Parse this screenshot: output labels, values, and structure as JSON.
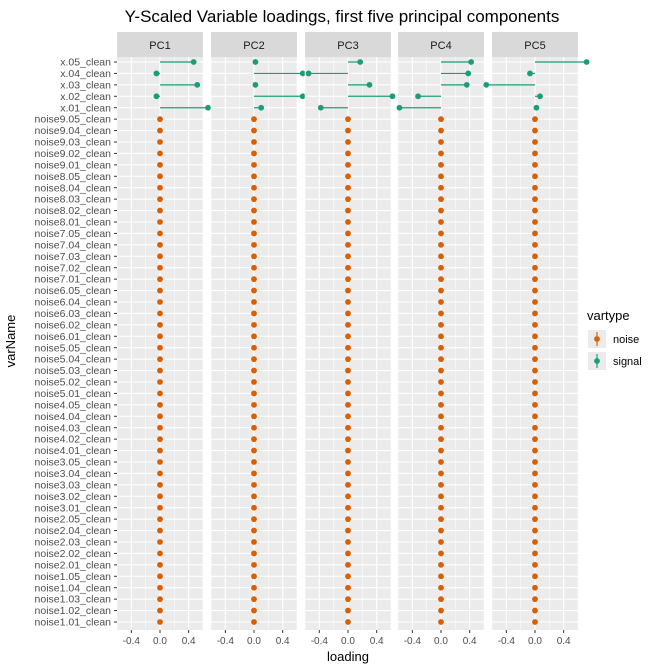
{
  "chart_data": {
    "type": "scatter",
    "title": "Y-Scaled Variable loadings, first five principal components",
    "xlabel": "loading",
    "ylabel": "varName",
    "panels": [
      "PC1",
      "PC2",
      "PC3",
      "PC4",
      "PC5"
    ],
    "xlim": [
      -0.6,
      0.6
    ],
    "xticks": [
      -0.4,
      0.0,
      0.4
    ],
    "xtick_labels": [
      "-0.4",
      "0.0",
      "0.4"
    ],
    "variables": [
      "x.05_clean",
      "x.04_clean",
      "x.03_clean",
      "x.02_clean",
      "x.01_clean",
      "noise9.05_clean",
      "noise9.04_clean",
      "noise9.03_clean",
      "noise9.02_clean",
      "noise9.01_clean",
      "noise8.05_clean",
      "noise8.04_clean",
      "noise8.03_clean",
      "noise8.02_clean",
      "noise8.01_clean",
      "noise7.05_clean",
      "noise7.04_clean",
      "noise7.03_clean",
      "noise7.02_clean",
      "noise7.01_clean",
      "noise6.05_clean",
      "noise6.04_clean",
      "noise6.03_clean",
      "noise6.02_clean",
      "noise6.01_clean",
      "noise5.05_clean",
      "noise5.04_clean",
      "noise5.03_clean",
      "noise5.02_clean",
      "noise5.01_clean",
      "noise4.05_clean",
      "noise4.04_clean",
      "noise4.03_clean",
      "noise4.02_clean",
      "noise4.01_clean",
      "noise3.05_clean",
      "noise3.04_clean",
      "noise3.03_clean",
      "noise3.02_clean",
      "noise3.01_clean",
      "noise2.05_clean",
      "noise2.04_clean",
      "noise2.03_clean",
      "noise2.02_clean",
      "noise2.01_clean",
      "noise1.05_clean",
      "noise1.04_clean",
      "noise1.03_clean",
      "noise1.02_clean",
      "noise1.01_clean"
    ],
    "signal_loadings": {
      "x.05_clean": [
        0.47,
        0.02,
        0.17,
        0.42,
        0.72
      ],
      "x.04_clean": [
        -0.05,
        0.68,
        -0.55,
        0.38,
        -0.07
      ],
      "x.03_clean": [
        0.52,
        0.02,
        0.3,
        0.36,
        -0.68
      ],
      "x.02_clean": [
        -0.05,
        0.68,
        0.62,
        -0.32,
        0.07
      ],
      "x.01_clean": [
        0.67,
        0.1,
        -0.38,
        -0.58,
        0.02
      ]
    },
    "noise_loading": 0.0,
    "legend": {
      "title": "vartype",
      "position": "right",
      "items": [
        {
          "label": "noise",
          "color": "#D95F02"
        },
        {
          "label": "signal",
          "color": "#1B9E77"
        }
      ]
    },
    "colors": {
      "panel_background": "#EBEBEB",
      "grid": "#FFFFFF",
      "strip": "#D9D9D9",
      "noise": "#D95F02",
      "signal": "#1B9E77"
    }
  }
}
